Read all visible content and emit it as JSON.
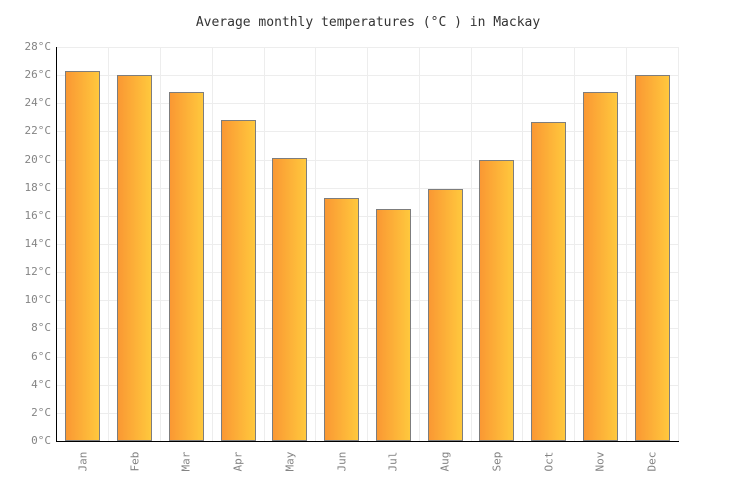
{
  "title": "Average monthly temperatures (°C ) in Mackay",
  "chart_data": {
    "type": "bar",
    "title": "Average monthly temperatures (°C ) in Mackay",
    "categories": [
      "Jan",
      "Feb",
      "Mar",
      "Apr",
      "May",
      "Jun",
      "Jul",
      "Aug",
      "Sep",
      "Oct",
      "Nov",
      "Dec"
    ],
    "values": [
      26.3,
      26.0,
      24.8,
      22.8,
      20.1,
      17.3,
      16.5,
      17.9,
      20.0,
      22.7,
      24.8,
      26.0
    ],
    "unit": "°C",
    "xlabel": "",
    "ylabel": "",
    "ylim": [
      0,
      28
    ],
    "ytick_step": 2,
    "ytick_labels": [
      "0°C",
      "2°C",
      "4°C",
      "6°C",
      "8°C",
      "10°C",
      "12°C",
      "14°C",
      "16°C",
      "18°C",
      "20°C",
      "22°C",
      "24°C",
      "26°C",
      "28°C"
    ],
    "grid": true,
    "legend_position": "none",
    "colors": {
      "bar_gradient_left": "#fa9833",
      "bar_gradient_right": "#ffc83d",
      "bar_border": "#7d7d7d",
      "axis": "#000000",
      "gridline": "#ededed",
      "tick_label": "#848484",
      "title_text": "#333333",
      "background": "#ffffff"
    }
  }
}
